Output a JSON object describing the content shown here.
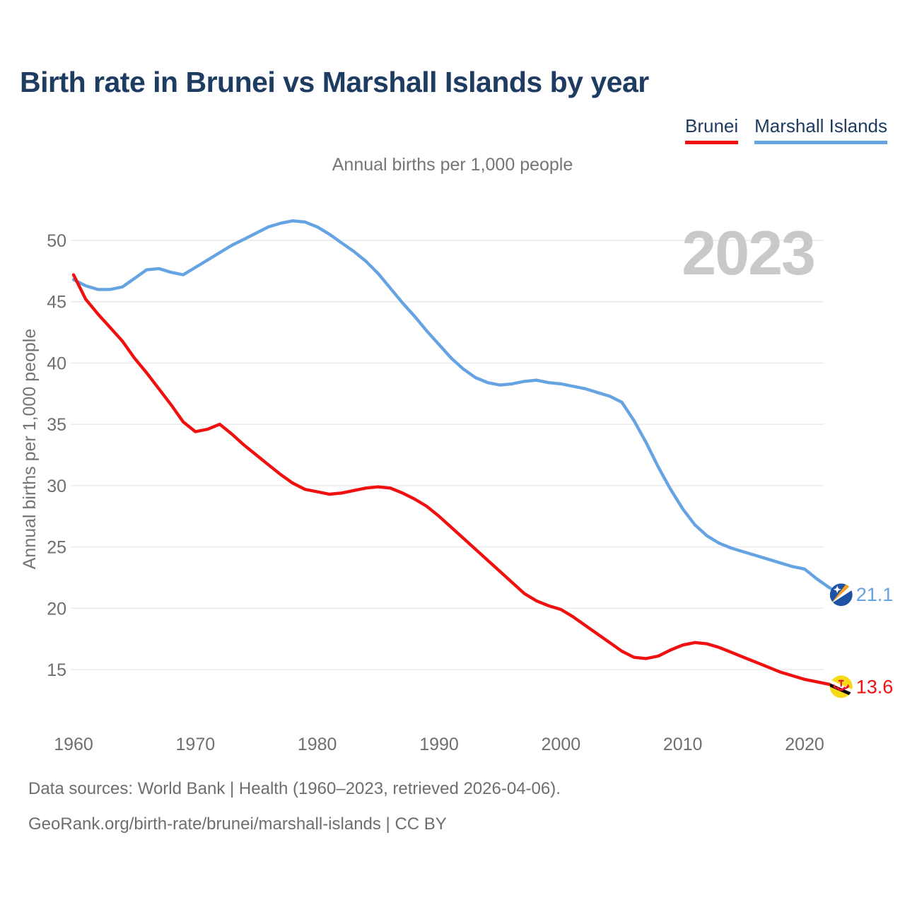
{
  "title": "Birth rate in Brunei vs Marshall Islands by year",
  "subtitle": "Annual births per 1,000 people",
  "y_axis_title": "Annual births per 1,000 people",
  "watermark": "2023",
  "legend": [
    {
      "label": "Brunei",
      "color": "#f01010"
    },
    {
      "label": "Marshall Islands",
      "color": "#66a3e2"
    }
  ],
  "footer": {
    "line1": "Data sources: World Bank | Health (1960–2023, retrieved 2026-04-06).",
    "line2": "GeoRank.org/birth-rate/brunei/marshall-islands | CC BY"
  },
  "colors": {
    "title_navy": "#1e3c61",
    "axis_text": "#6f6f6f",
    "gridline": "#e8e8e8",
    "watermark_gray": "#c9c9c9",
    "mh_flag_blue": "#1f51a5",
    "mh_flag_orange": "#f7a21d",
    "bn_flag_yellow": "#f7d917",
    "bn_flag_red": "#e8112d"
  },
  "chart_data": {
    "type": "line",
    "title": "Birth rate in Brunei vs Marshall Islands by year",
    "subtitle": "Annual births per 1,000 people",
    "xlabel": "",
    "ylabel": "Annual births per 1,000 people",
    "xlim": [
      1960,
      2023
    ],
    "ylim": [
      13,
      53
    ],
    "grid": true,
    "legend_position": "top-right",
    "watermark": "2023",
    "xticks": [
      1960,
      1970,
      1980,
      1990,
      2000,
      2010,
      2020
    ],
    "yticks": [
      15,
      20,
      25,
      30,
      35,
      40,
      45,
      50
    ],
    "x": [
      1960,
      1961,
      1962,
      1963,
      1964,
      1965,
      1966,
      1967,
      1968,
      1969,
      1970,
      1971,
      1972,
      1973,
      1974,
      1975,
      1976,
      1977,
      1978,
      1979,
      1980,
      1981,
      1982,
      1983,
      1984,
      1985,
      1986,
      1987,
      1988,
      1989,
      1990,
      1991,
      1992,
      1993,
      1994,
      1995,
      1996,
      1997,
      1998,
      1999,
      2000,
      2001,
      2002,
      2003,
      2004,
      2005,
      2006,
      2007,
      2008,
      2009,
      2010,
      2011,
      2012,
      2013,
      2014,
      2015,
      2016,
      2017,
      2018,
      2019,
      2020,
      2021,
      2022,
      2023
    ],
    "series": [
      {
        "name": "Brunei",
        "color": "#f01010",
        "end_label": "13.6",
        "end_value": 13.6,
        "values": [
          47.2,
          45.2,
          44.0,
          42.9,
          41.8,
          40.4,
          39.2,
          37.9,
          36.6,
          35.2,
          34.4,
          34.6,
          35.0,
          34.2,
          33.3,
          32.5,
          31.7,
          30.9,
          30.2,
          29.7,
          29.5,
          29.3,
          29.4,
          29.6,
          29.8,
          29.9,
          29.8,
          29.4,
          28.9,
          28.3,
          27.5,
          26.6,
          25.7,
          24.8,
          23.9,
          23.0,
          22.1,
          21.2,
          20.6,
          20.2,
          19.9,
          19.3,
          18.6,
          17.9,
          17.2,
          16.5,
          16.0,
          15.9,
          16.1,
          16.6,
          17.0,
          17.2,
          17.1,
          16.8,
          16.4,
          16.0,
          15.6,
          15.2,
          14.8,
          14.5,
          14.2,
          14.0,
          13.8,
          13.6
        ]
      },
      {
        "name": "Marshall Islands",
        "color": "#66a3e2",
        "end_label": "21.1",
        "end_value": 21.1,
        "values": [
          46.8,
          46.3,
          46.0,
          46.0,
          46.2,
          46.9,
          47.6,
          47.7,
          47.4,
          47.2,
          47.8,
          48.4,
          49.0,
          49.6,
          50.1,
          50.6,
          51.1,
          51.4,
          51.6,
          51.5,
          51.1,
          50.5,
          49.8,
          49.1,
          48.3,
          47.3,
          46.1,
          44.9,
          43.8,
          42.6,
          41.5,
          40.4,
          39.5,
          38.8,
          38.4,
          38.2,
          38.3,
          38.5,
          38.6,
          38.4,
          38.3,
          38.1,
          37.9,
          37.6,
          37.3,
          36.8,
          35.3,
          33.5,
          31.5,
          29.7,
          28.1,
          26.8,
          25.9,
          25.3,
          24.9,
          24.6,
          24.3,
          24.0,
          23.7,
          23.4,
          23.2,
          22.4,
          21.7,
          21.1
        ]
      }
    ]
  }
}
